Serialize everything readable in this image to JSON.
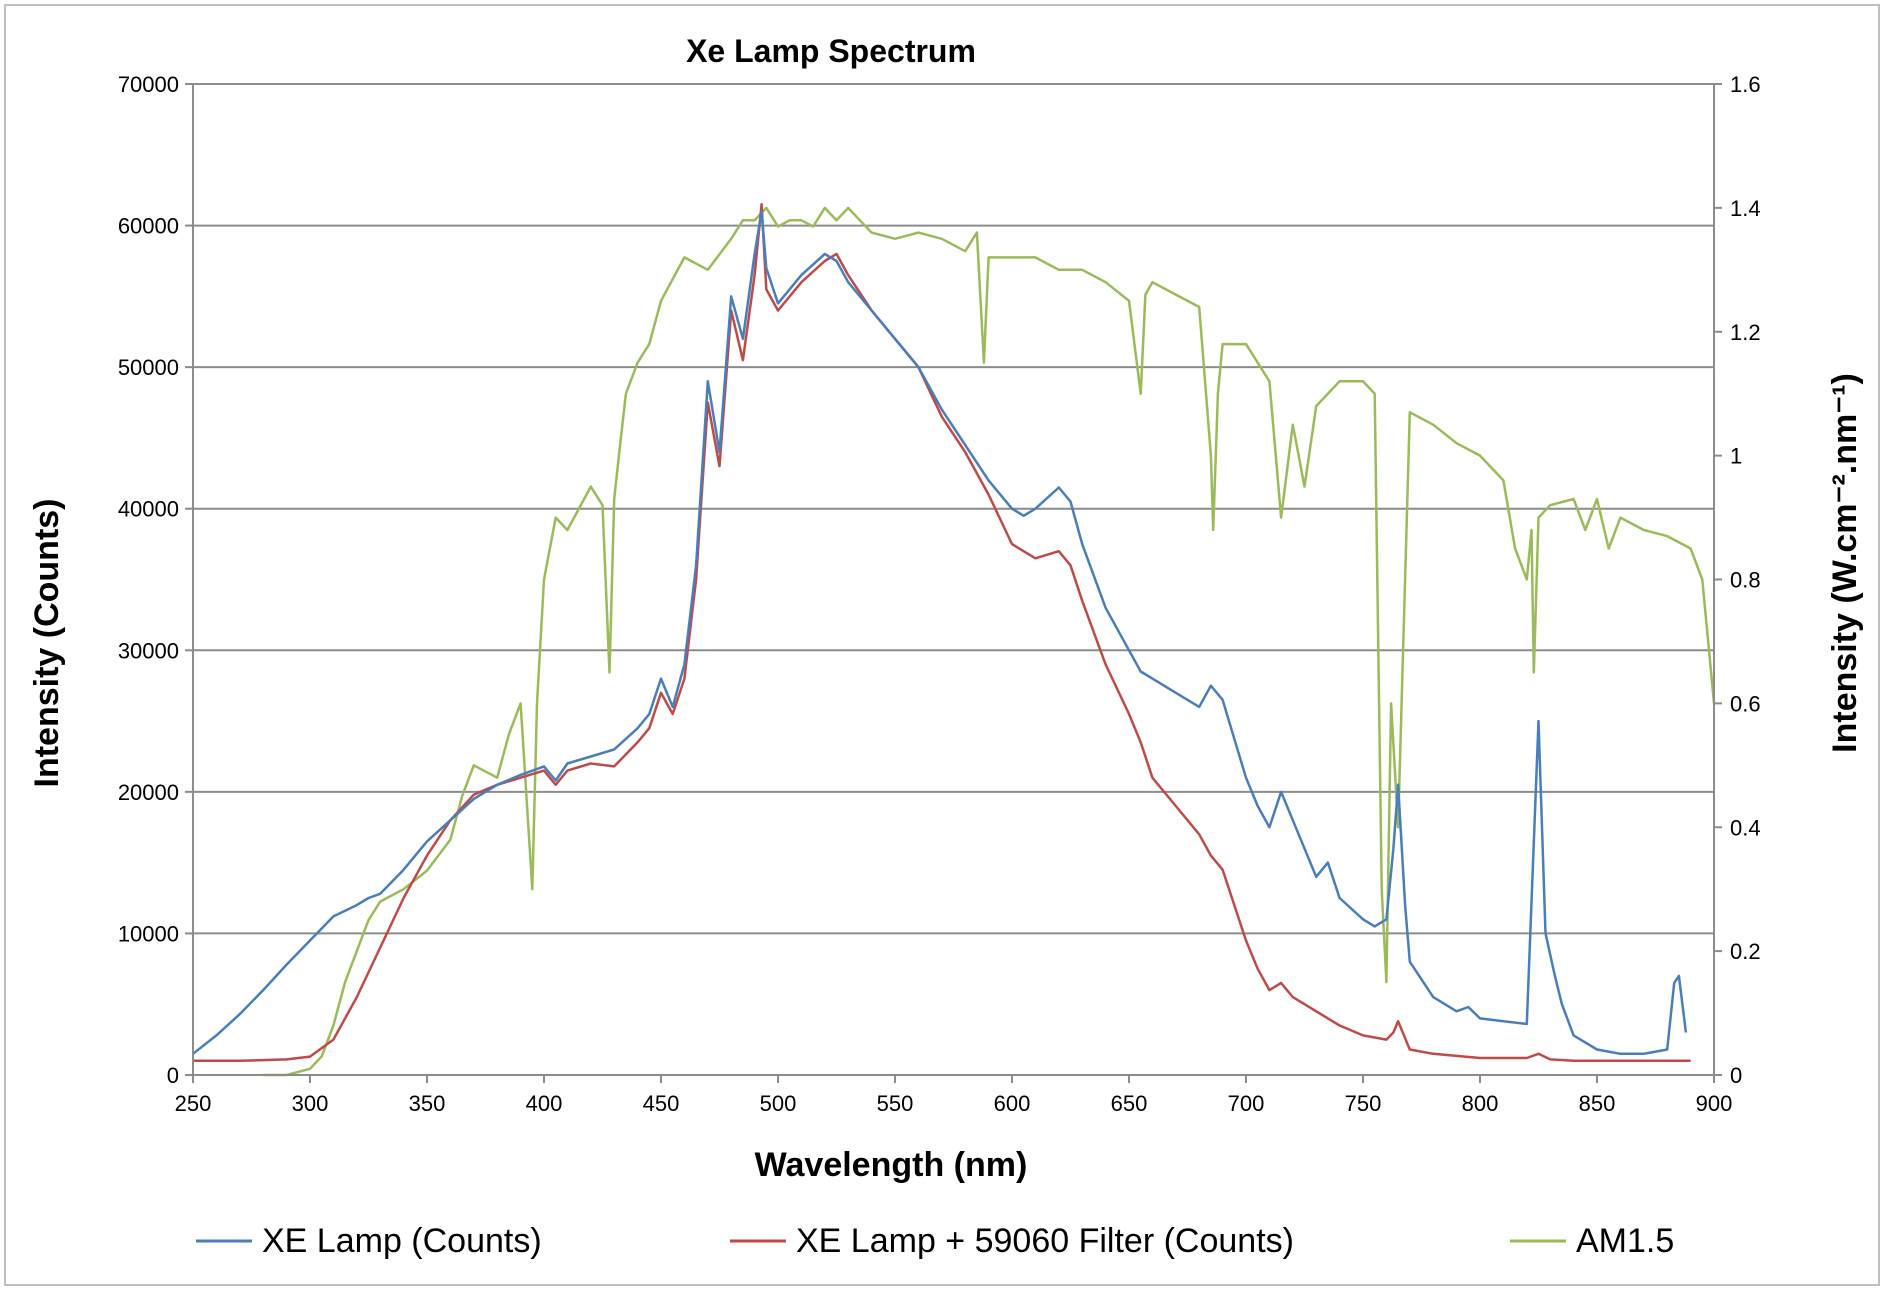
{
  "chart_data": {
    "type": "line",
    "title": "Xe Lamp Spectrum",
    "xlabel": "Wavelength (nm)",
    "ylabel_left": "Intensity (Counts)",
    "ylabel_right": "Intensity (W.cm⁻².nm⁻¹)",
    "xlim": [
      250,
      900
    ],
    "ylim_left": [
      0,
      70000
    ],
    "ylim_right": [
      0,
      1.6
    ],
    "x_ticks": [
      250,
      300,
      350,
      400,
      450,
      500,
      550,
      600,
      650,
      700,
      750,
      800,
      850,
      900
    ],
    "y_left_ticks": [
      0,
      10000,
      20000,
      30000,
      40000,
      50000,
      60000,
      70000
    ],
    "y_right_ticks": [
      0,
      0.2,
      0.4,
      0.6,
      0.8,
      1,
      1.2,
      1.4,
      1.6
    ],
    "grid": true,
    "legend_position": "bottom",
    "series": [
      {
        "name": "XE Lamp (Counts)",
        "axis": "left",
        "color": "#4a7ebb",
        "x": [
          250,
          260,
          270,
          280,
          290,
          300,
          310,
          320,
          325,
          330,
          340,
          350,
          360,
          370,
          380,
          390,
          400,
          405,
          410,
          420,
          430,
          440,
          445,
          450,
          455,
          460,
          465,
          470,
          475,
          480,
          485,
          490,
          493,
          495,
          500,
          510,
          520,
          525,
          530,
          540,
          550,
          560,
          570,
          580,
          590,
          600,
          605,
          610,
          620,
          625,
          630,
          640,
          650,
          655,
          660,
          670,
          680,
          685,
          690,
          700,
          705,
          710,
          715,
          720,
          730,
          735,
          740,
          750,
          755,
          760,
          763,
          765,
          768,
          770,
          780,
          790,
          795,
          800,
          810,
          820,
          825,
          828,
          832,
          835,
          840,
          850,
          860,
          870,
          880,
          883,
          885,
          888
        ],
        "y": [
          1500,
          2800,
          4300,
          6000,
          7800,
          9500,
          11200,
          12000,
          12500,
          12800,
          14500,
          16500,
          18000,
          19500,
          20500,
          21200,
          21800,
          20800,
          22000,
          22500,
          23000,
          24500,
          25500,
          28000,
          26000,
          29000,
          36000,
          49000,
          44000,
          55000,
          52000,
          58000,
          61000,
          57000,
          54500,
          56500,
          58000,
          57500,
          56000,
          54000,
          52000,
          50000,
          47000,
          44500,
          42000,
          40000,
          39500,
          40000,
          41500,
          40500,
          37500,
          33000,
          30000,
          28500,
          28000,
          27000,
          26000,
          27500,
          26500,
          21000,
          19000,
          17500,
          20000,
          18000,
          14000,
          15000,
          12500,
          11000,
          10500,
          11000,
          16000,
          20500,
          12000,
          8000,
          5500,
          4500,
          4800,
          4000,
          3800,
          3600,
          25000,
          10000,
          7000,
          5000,
          2800,
          1800,
          1500,
          1500,
          1800,
          6500,
          7000,
          3000
        ]
      },
      {
        "name": "XE Lamp + 59060 Filter (Counts)",
        "axis": "left",
        "color": "#be4b48",
        "x": [
          250,
          270,
          290,
          300,
          310,
          320,
          330,
          340,
          350,
          360,
          370,
          380,
          390,
          400,
          405,
          410,
          420,
          430,
          440,
          445,
          450,
          455,
          460,
          465,
          470,
          475,
          480,
          485,
          490,
          493,
          495,
          500,
          510,
          520,
          525,
          530,
          540,
          550,
          560,
          570,
          580,
          590,
          600,
          610,
          620,
          625,
          630,
          640,
          650,
          655,
          660,
          670,
          680,
          685,
          690,
          700,
          705,
          710,
          715,
          720,
          730,
          740,
          750,
          760,
          763,
          765,
          768,
          770,
          780,
          800,
          820,
          825,
          830,
          840,
          850,
          870,
          890
        ],
        "y": [
          1000,
          1000,
          1100,
          1300,
          2500,
          5500,
          9000,
          12500,
          15500,
          18000,
          19800,
          20500,
          21000,
          21500,
          20500,
          21500,
          22000,
          21800,
          23500,
          24500,
          27000,
          25500,
          28000,
          35000,
          47500,
          43000,
          54000,
          50500,
          56500,
          61500,
          55500,
          54000,
          56000,
          57500,
          58000,
          56500,
          54000,
          52000,
          50000,
          46500,
          44000,
          41000,
          37500,
          36500,
          37000,
          36000,
          33500,
          29000,
          25500,
          23500,
          21000,
          19000,
          17000,
          15500,
          14500,
          9500,
          7500,
          6000,
          6500,
          5500,
          4500,
          3500,
          2800,
          2500,
          3000,
          3800,
          2600,
          1800,
          1500,
          1200,
          1200,
          1500,
          1100,
          1000,
          1000,
          1000,
          1000
        ]
      },
      {
        "name": "AM1.5",
        "axis": "right",
        "color": "#9bbb59",
        "x": [
          280,
          290,
          300,
          305,
          310,
          315,
          320,
          325,
          330,
          340,
          350,
          360,
          365,
          370,
          380,
          385,
          390,
          395,
          397,
          400,
          405,
          410,
          420,
          425,
          428,
          430,
          432,
          435,
          440,
          445,
          450,
          460,
          470,
          480,
          485,
          490,
          495,
          500,
          505,
          510,
          515,
          520,
          525,
          530,
          535,
          540,
          550,
          560,
          570,
          580,
          585,
          588,
          590,
          600,
          610,
          620,
          630,
          640,
          650,
          655,
          657,
          660,
          670,
          680,
          685,
          686,
          688,
          690,
          700,
          710,
          715,
          720,
          725,
          730,
          740,
          750,
          755,
          758,
          760,
          762,
          765,
          770,
          780,
          790,
          800,
          810,
          815,
          820,
          822,
          823,
          825,
          830,
          840,
          845,
          850,
          855,
          860,
          870,
          880,
          890,
          895,
          900
        ],
        "y": [
          0,
          0,
          0.01,
          0.03,
          0.08,
          0.15,
          0.2,
          0.25,
          0.28,
          0.3,
          0.33,
          0.38,
          0.45,
          0.5,
          0.48,
          0.55,
          0.6,
          0.3,
          0.6,
          0.8,
          0.9,
          0.88,
          0.95,
          0.92,
          0.65,
          0.93,
          1.0,
          1.1,
          1.15,
          1.18,
          1.25,
          1.32,
          1.3,
          1.35,
          1.38,
          1.38,
          1.4,
          1.37,
          1.38,
          1.38,
          1.37,
          1.4,
          1.38,
          1.4,
          1.38,
          1.36,
          1.35,
          1.36,
          1.35,
          1.33,
          1.36,
          1.15,
          1.32,
          1.32,
          1.32,
          1.3,
          1.3,
          1.28,
          1.25,
          1.1,
          1.26,
          1.28,
          1.26,
          1.24,
          1.0,
          0.88,
          1.1,
          1.18,
          1.18,
          1.12,
          0.9,
          1.05,
          0.95,
          1.08,
          1.12,
          1.12,
          1.1,
          0.3,
          0.15,
          0.6,
          0.4,
          1.07,
          1.05,
          1.02,
          1.0,
          0.96,
          0.85,
          0.8,
          0.88,
          0.65,
          0.9,
          0.92,
          0.93,
          0.88,
          0.93,
          0.85,
          0.9,
          0.88,
          0.87,
          0.85,
          0.8,
          0.6
        ]
      }
    ]
  }
}
